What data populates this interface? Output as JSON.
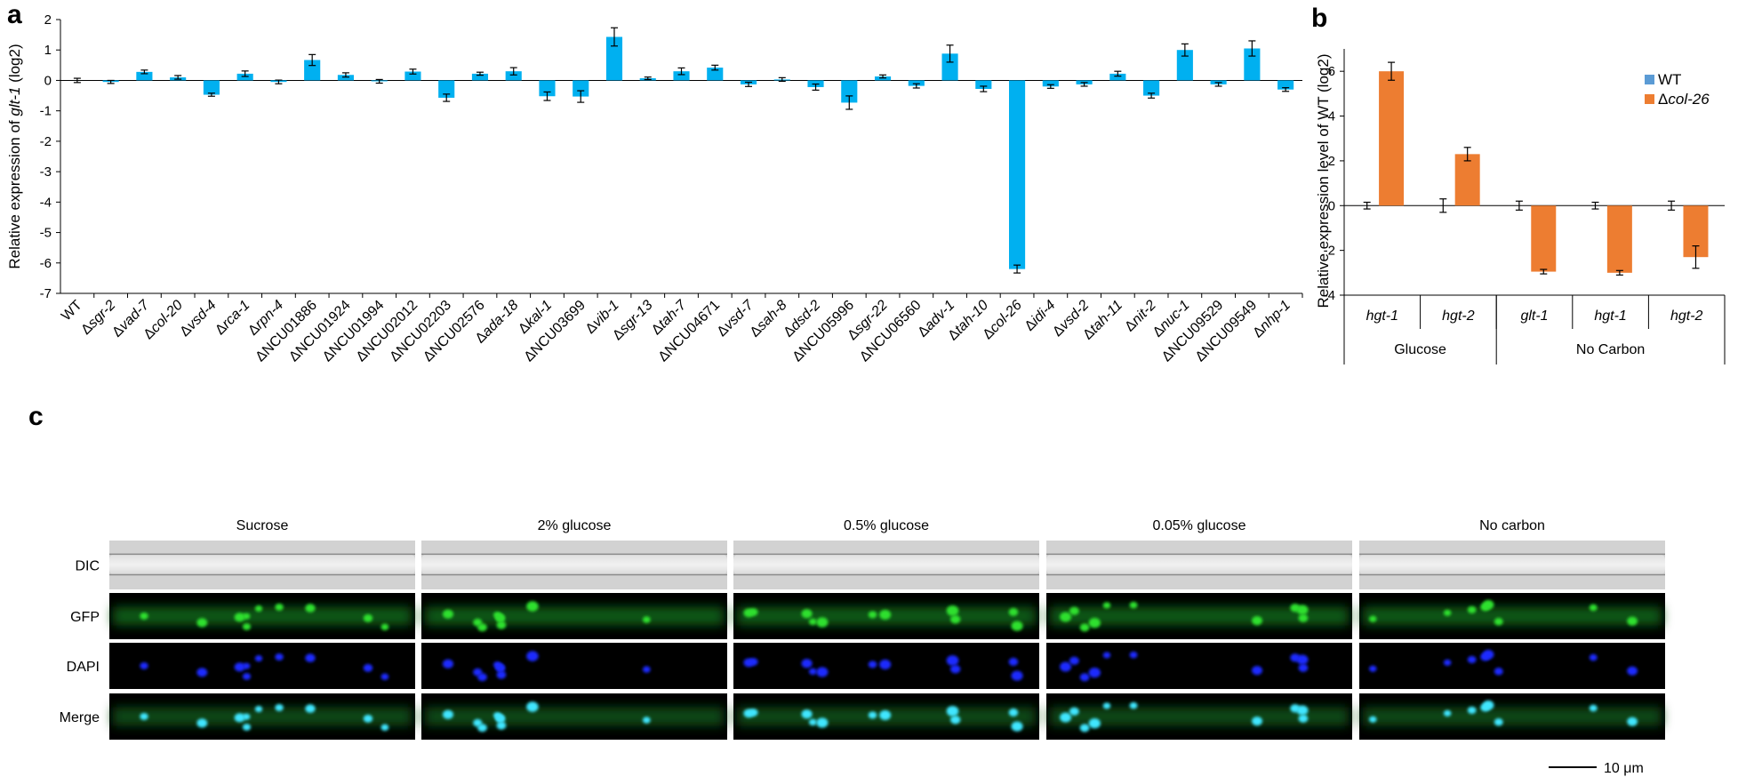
{
  "panels": {
    "a": "a",
    "b": "b",
    "c": "c"
  },
  "chart_data": [
    {
      "type": "bar",
      "title": "",
      "xlabel": "",
      "ylabel_parts": [
        "Relative expression of ",
        "glt-1",
        " (log2)"
      ],
      "ylim": [
        -7,
        2
      ],
      "yticks": [
        2,
        1,
        0,
        -1,
        -2,
        -3,
        -4,
        -5,
        -6,
        -7
      ],
      "categories": [
        "WT",
        "Δsgr-2",
        "Δvad-7",
        "Δcol-20",
        "Δvsd-4",
        "Δrca-1",
        "Δrpn-4",
        "ΔNCU01886",
        "ΔNCU01924",
        "ΔNCU01994",
        "ΔNCU02012",
        "ΔNCU02203",
        "ΔNCU02576",
        "Δada-18",
        "Δkal-1",
        "ΔNCU03699",
        "Δvib-1",
        "Δsgr-13",
        "Δtah-7",
        "ΔNCU04671",
        "Δvsd-7",
        "Δsah-8",
        "Δdsd-2",
        "ΔNCU05996",
        "Δsgr-22",
        "ΔNCU06560",
        "Δadv-1",
        "Δtah-10",
        "Δcol-26",
        "Δidi-4",
        "Δvsd-2",
        "Δtah-11",
        "Δnit-2",
        "Δnuc-1",
        "ΔNCU09529",
        "ΔNCU09549",
        "Δnhp-1"
      ],
      "italic": [
        false,
        true,
        true,
        true,
        true,
        true,
        true,
        false,
        false,
        false,
        false,
        false,
        false,
        true,
        true,
        false,
        true,
        true,
        true,
        false,
        true,
        true,
        true,
        false,
        true,
        false,
        true,
        true,
        true,
        true,
        true,
        true,
        true,
        true,
        false,
        false,
        true
      ],
      "values": [
        0,
        -0.05,
        0.28,
        0.1,
        -0.47,
        0.22,
        -0.05,
        0.67,
        0.18,
        -0.03,
        0.29,
        -0.57,
        0.22,
        0.3,
        -0.52,
        -0.53,
        1.43,
        0.07,
        0.3,
        0.42,
        -0.13,
        0.03,
        -0.22,
        -0.73,
        0.13,
        -0.18,
        0.88,
        -0.28,
        -6.2,
        -0.2,
        -0.13,
        0.22,
        -0.5,
        1.0,
        -0.13,
        1.05,
        -0.3
      ],
      "errors": [
        0.07,
        0.05,
        0.06,
        0.06,
        0.05,
        0.09,
        0.06,
        0.18,
        0.07,
        0.06,
        0.08,
        0.12,
        0.05,
        0.12,
        0.14,
        0.19,
        0.3,
        0.04,
        0.11,
        0.08,
        0.07,
        0.06,
        0.1,
        0.22,
        0.05,
        0.07,
        0.28,
        0.09,
        0.13,
        0.06,
        0.06,
        0.08,
        0.08,
        0.2,
        0.06,
        0.25,
        0.06
      ],
      "color": "#00b0f0"
    },
    {
      "type": "bar",
      "title": "",
      "ylabel": "Relative expression level of WT (log2)",
      "ylim": [
        -4,
        7
      ],
      "yticks": [
        6,
        4,
        2,
        0,
        -2,
        -4
      ],
      "categories": [
        "hgt-1",
        "hgt-2",
        "glt-1",
        "hgt-1",
        "hgt-2"
      ],
      "groups": [
        {
          "label": "Glucose",
          "span": 2
        },
        {
          "label": "No Carbon",
          "span": 3
        }
      ],
      "legend": [
        "WT",
        "Δcol-26"
      ],
      "series": [
        {
          "name": "WT",
          "values": [
            0,
            0,
            0,
            0,
            0
          ],
          "errors": [
            0.15,
            0.3,
            0.2,
            0.15,
            0.2
          ],
          "color": "#5b9bd5"
        },
        {
          "name": "Δcol-26",
          "values": [
            6.0,
            2.3,
            -2.95,
            -3.0,
            -2.3
          ],
          "errors": [
            0.4,
            0.3,
            0.1,
            0.1,
            0.5
          ],
          "color": "#ed7d31"
        }
      ]
    }
  ],
  "micrographs": {
    "conditions": [
      "Sucrose",
      "2% glucose",
      "0.5% glucose",
      "0.05% glucose",
      "No carbon"
    ],
    "channels": [
      "DIC",
      "GFP",
      "DAPI",
      "Merge"
    ],
    "scale_bar": "10 μm"
  }
}
